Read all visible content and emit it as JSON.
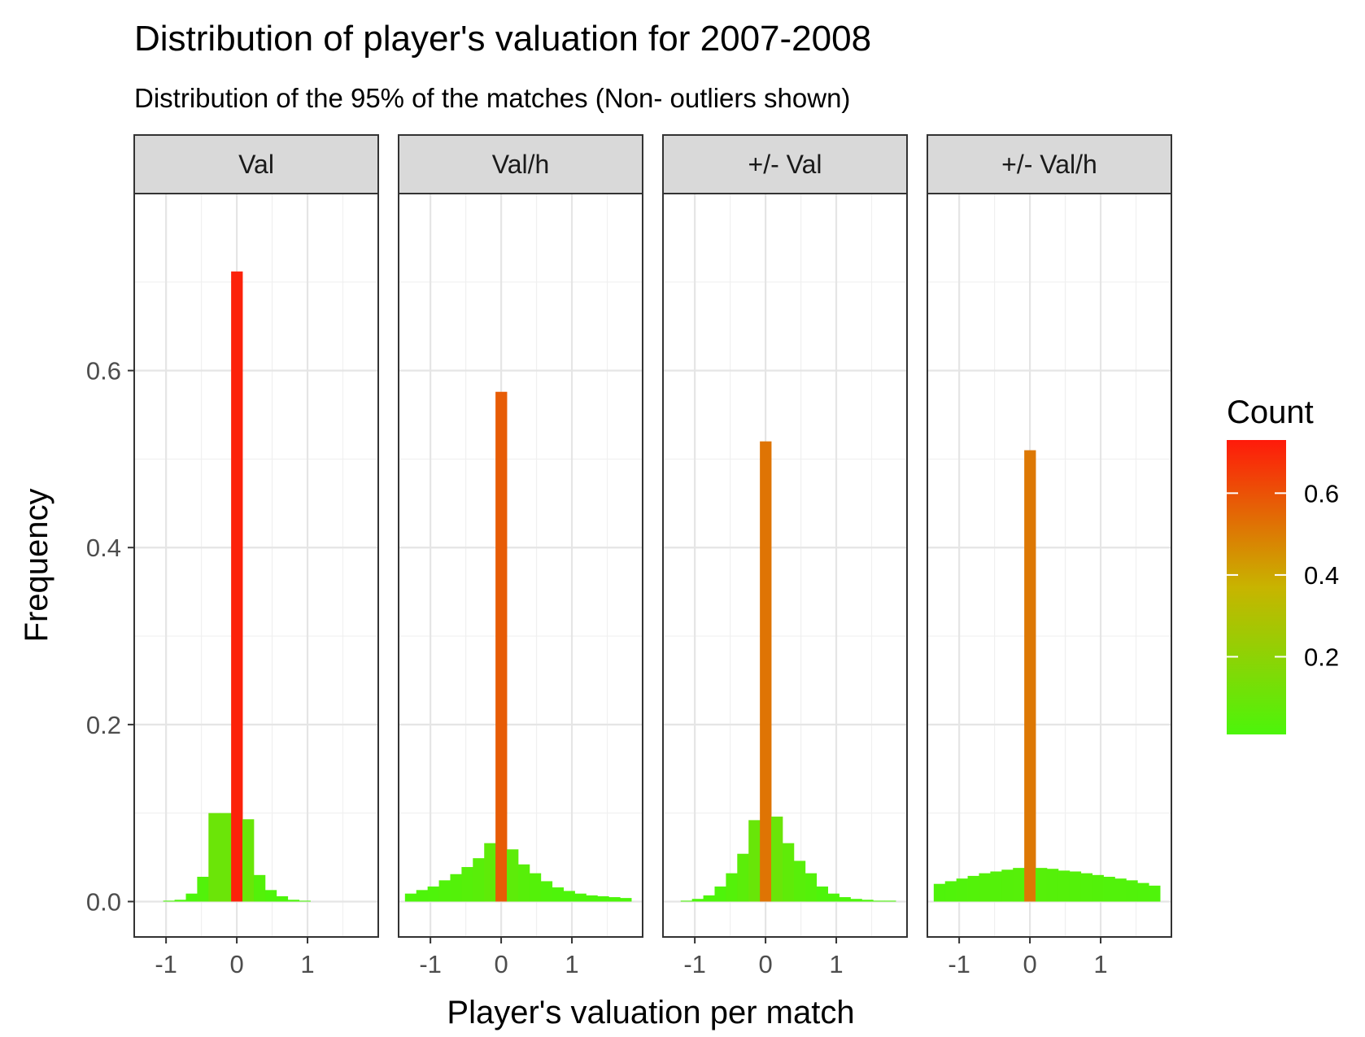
{
  "chart_data": {
    "type": "bar",
    "title": "Distribution of player's valuation for 2007-2008",
    "subtitle": "Distribution of the 95% of the matches (Non- outliers shown)",
    "xlabel": "Player's valuation per match",
    "ylabel": "Frequency",
    "xlim": [
      -1.45,
      2.0
    ],
    "ylim": [
      -0.04,
      0.8
    ],
    "x_ticks": [
      -1,
      0,
      1
    ],
    "y_ticks": [
      0.0,
      0.2,
      0.4,
      0.6
    ],
    "grid": true,
    "bin_width": 0.16,
    "legend": {
      "title": "Count",
      "placement": "right",
      "range": [
        0.01,
        0.73
      ],
      "ticks": [
        0.2,
        0.4,
        0.6
      ],
      "low_color": "#4cf50a",
      "mid_color": "#c8b400",
      "high_color": "#ff1a0a"
    },
    "panels": [
      {
        "label": "Val",
        "x": [
          -0.96,
          -0.8,
          -0.64,
          -0.48,
          -0.32,
          -0.16,
          0.0,
          0.16,
          0.32,
          0.48,
          0.64,
          0.8,
          0.96
        ],
        "values": [
          0.001,
          0.002,
          0.009,
          0.028,
          0.1,
          0.1,
          0.712,
          0.093,
          0.03,
          0.013,
          0.006,
          0.002,
          0.001
        ]
      },
      {
        "label": "Val/h",
        "x": [
          -1.28,
          -1.12,
          -0.96,
          -0.8,
          -0.64,
          -0.48,
          -0.32,
          -0.16,
          0.0,
          0.16,
          0.32,
          0.48,
          0.64,
          0.8,
          0.96,
          1.12,
          1.28,
          1.44,
          1.6,
          1.76
        ],
        "values": [
          0.009,
          0.013,
          0.017,
          0.024,
          0.031,
          0.039,
          0.049,
          0.066,
          0.576,
          0.059,
          0.042,
          0.032,
          0.023,
          0.016,
          0.012,
          0.009,
          0.007,
          0.006,
          0.005,
          0.004
        ]
      },
      {
        "label": "+/- Val",
        "x": [
          -1.12,
          -0.96,
          -0.8,
          -0.64,
          -0.48,
          -0.32,
          -0.16,
          0.0,
          0.16,
          0.32,
          0.48,
          0.64,
          0.8,
          0.96,
          1.12,
          1.28,
          1.44,
          1.6,
          1.76
        ],
        "values": [
          0.001,
          0.003,
          0.007,
          0.017,
          0.032,
          0.054,
          0.092,
          0.52,
          0.096,
          0.066,
          0.046,
          0.032,
          0.017,
          0.009,
          0.005,
          0.003,
          0.002,
          0.001,
          0.001
        ]
      },
      {
        "label": "+/- Val/h",
        "x": [
          -1.28,
          -1.12,
          -0.96,
          -0.8,
          -0.64,
          -0.48,
          -0.32,
          -0.16,
          0.0,
          0.16,
          0.32,
          0.48,
          0.64,
          0.8,
          0.96,
          1.12,
          1.28,
          1.44,
          1.6,
          1.76
        ],
        "values": [
          0.02,
          0.023,
          0.026,
          0.029,
          0.032,
          0.034,
          0.036,
          0.038,
          0.51,
          0.038,
          0.037,
          0.035,
          0.034,
          0.032,
          0.03,
          0.028,
          0.026,
          0.024,
          0.021,
          0.018
        ]
      }
    ]
  }
}
